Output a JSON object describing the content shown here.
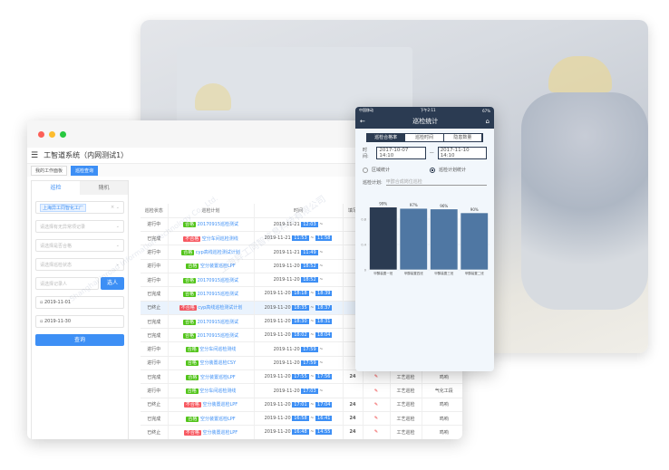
{
  "app": {
    "title": "工智道系统（内网测试1）",
    "tabs": [
      {
        "label": "我的工作面板"
      },
      {
        "label": "巡检查询"
      }
    ]
  },
  "sidebar": {
    "tabs": [
      "巡检",
      "随机"
    ],
    "factory_chip": "上海异工同智化工厂",
    "placeholders": [
      "请选择有无异常项记录",
      "请选择是否合格",
      "请选择巡检状态",
      "请选择记录人"
    ],
    "pick_label": "选人",
    "start_date": "2019-11-01",
    "end_date": "2019-11-30",
    "query_label": "查询"
  },
  "table": {
    "headers": [
      "巡检状态",
      "巡检计划",
      "时间",
      "填写"
    ],
    "rows": [
      {
        "status": "进行中",
        "result": "合格",
        "plan": "20170915巡检测试",
        "date": "2019-11-21",
        "start": "12:03",
        "end": ""
      },
      {
        "status": "已完成",
        "result": "不合格",
        "plan": "空分车间巡检测线",
        "date": "2019-11-21",
        "start": "11:53",
        "end": "11:58"
      },
      {
        "status": "进行中",
        "result": "合格",
        "plan": "cyp高线巡检测试计划",
        "date": "2019-11-21",
        "start": "11:49",
        "end": ""
      },
      {
        "status": "进行中",
        "result": "合格",
        "plan": "空分装置巡检LPF",
        "date": "2019-11-20",
        "start": "18:52",
        "end": ""
      },
      {
        "status": "进行中",
        "result": "合格",
        "plan": "20170915巡检测试",
        "date": "2019-11-20",
        "start": "18:52",
        "end": ""
      },
      {
        "status": "已完成",
        "result": "合格",
        "plan": "20170915巡检测试",
        "date": "2019-11-20",
        "start": "18:18",
        "end": "18:39"
      },
      {
        "status": "已终止",
        "result": "不合格",
        "plan": "cyp高线巡检测试计划",
        "date": "2019-11-20",
        "start": "18:35",
        "end": "18:37"
      },
      {
        "status": "已完成",
        "result": "合格",
        "plan": "20170915巡检测试",
        "date": "2019-11-20",
        "start": "18:30",
        "end": "18:31"
      },
      {
        "status": "已完成",
        "result": "合格",
        "plan": "20170915巡检测试",
        "date": "2019-11-20",
        "start": "18:02",
        "end": "18:04"
      },
      {
        "status": "进行中",
        "result": "合格",
        "plan": "空分车间巡检测线",
        "date": "2019-11-20",
        "start": "17:59",
        "end": ""
      },
      {
        "status": "进行中",
        "result": "合格",
        "plan": "空分装置巡检CSY",
        "date": "2019-11-20",
        "start": "17:59",
        "end": ""
      },
      {
        "status": "已完成",
        "result": "合格",
        "plan": "空分装置巡检LPF",
        "date": "2019-11-20",
        "start": "17:55",
        "end": "17:56",
        "fill": "24",
        "type": "工艺巡检",
        "area": "鸣响"
      },
      {
        "status": "进行中",
        "result": "合格",
        "plan": "空分车间巡检测线",
        "date": "2019-11-20",
        "start": "17:03",
        "end": "",
        "fill": "",
        "type": "工艺巡检",
        "area": "气化工段"
      },
      {
        "status": "已终止",
        "result": "不合格",
        "plan": "空分装置巡检LPF",
        "date": "2019-11-20",
        "start": "17:01",
        "end": "17:04",
        "fill": "24",
        "type": "工艺巡检",
        "area": "鸣响"
      },
      {
        "status": "已完成",
        "result": "合格",
        "plan": "空分装置巡检LPF",
        "date": "2019-11-20",
        "start": "16:58",
        "end": "16:41",
        "fill": "24",
        "type": "工艺巡检",
        "area": "鸣响"
      },
      {
        "status": "已终止",
        "result": "不合格",
        "plan": "空分装置巡检LPF",
        "date": "2019-11-20",
        "start": "16:48",
        "end": "14:55",
        "fill": "24",
        "type": "工艺巡检",
        "area": "鸣响"
      }
    ]
  },
  "phone": {
    "carrier": "中国移动",
    "time": "下午2:11",
    "battery": "67%",
    "title": "巡检统计",
    "segments": [
      "巡检合格率",
      "巡检时间",
      "隐患数量"
    ],
    "time_label": "时间:",
    "date_from": "2017-10-07 14:10",
    "date_to": "2017-11-10 14:10",
    "radio_area": "区域统计",
    "radio_plan": "巡检计划统计",
    "plan_label": "巡检计划:",
    "plan_placeholder": "甲醇合成岗位巡检"
  },
  "chart_data": {
    "type": "bar",
    "categories": [
      "甲醇装置一班",
      "甲醇装置四班",
      "甲醇装置三班",
      "甲醇装置二班"
    ],
    "values": [
      0.99,
      0.97,
      0.96,
      0.9
    ],
    "data_labels": [
      "99%",
      "97%",
      "96%",
      "90%"
    ],
    "yticks": [
      "0",
      "0.4",
      "0.8"
    ],
    "ylim": [
      0,
      1.1
    ],
    "grid": true,
    "colors": [
      "#2b3b52",
      "#4f77a3",
      "#4f77a3",
      "#4f77a3"
    ]
  },
  "watermark": {
    "cn": "上海异工同智信息科技有限公司",
    "en": "Shanghai Inroad Information Technology Co., Ltd."
  }
}
